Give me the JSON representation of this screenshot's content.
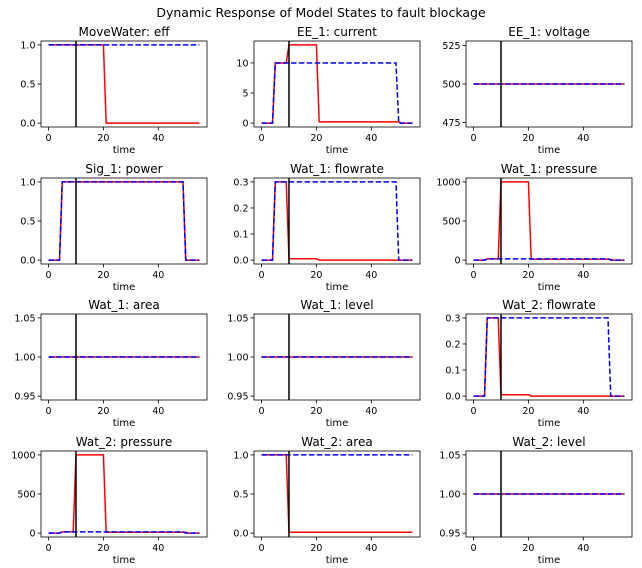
{
  "figure": {
    "title": "Dynamic Response of Model States to fault blockage",
    "fault_time": 10,
    "colors": {
      "faulty": "#ff0000",
      "nominal": "#0000ff",
      "marker": "#000000"
    }
  },
  "chart_data": [
    {
      "type": "line",
      "title": "MoveWater: eff",
      "xlabel": "time",
      "ylabel": "",
      "xlim": [
        -2.75,
        57.75
      ],
      "ylim": [
        -0.05,
        1.05
      ],
      "xticks": [
        0,
        20,
        40
      ],
      "yticks": [
        0.0,
        0.5,
        1.0
      ],
      "ytick_labels": [
        "0.0",
        "0.5",
        "1.0"
      ],
      "vline": 10,
      "series": [
        {
          "style": "solid-red",
          "points": [
            [
              0,
              1
            ],
            [
              20,
              1
            ],
            [
              21,
              0
            ],
            [
              55,
              0
            ]
          ]
        },
        {
          "style": "dashed-blue",
          "points": [
            [
              0,
              1
            ],
            [
              55,
              1
            ]
          ]
        }
      ]
    },
    {
      "type": "line",
      "title": "EE_1: current",
      "xlabel": "time",
      "ylabel": "",
      "xlim": [
        -2.75,
        57.75
      ],
      "ylim": [
        -0.65,
        13.65
      ],
      "xticks": [
        0,
        20,
        40
      ],
      "yticks": [
        0,
        5,
        10
      ],
      "ytick_labels": [
        "0",
        "5",
        "10"
      ],
      "vline": 10,
      "series": [
        {
          "style": "solid-red",
          "points": [
            [
              0,
              0
            ],
            [
              4,
              0
            ],
            [
              5,
              10
            ],
            [
              9,
              10
            ],
            [
              10,
              13
            ],
            [
              20,
              13
            ],
            [
              21,
              0.2
            ],
            [
              50,
              0.2
            ],
            [
              51,
              0
            ],
            [
              55,
              0
            ]
          ]
        },
        {
          "style": "dashed-blue",
          "points": [
            [
              0,
              0
            ],
            [
              4,
              0
            ],
            [
              5,
              10
            ],
            [
              49,
              10
            ],
            [
              50,
              0
            ],
            [
              55,
              0
            ]
          ]
        }
      ]
    },
    {
      "type": "line",
      "title": "EE_1: voltage",
      "xlabel": "time",
      "ylabel": "",
      "xlim": [
        -2.75,
        57.75
      ],
      "ylim": [
        472,
        528
      ],
      "xticks": [
        0,
        20,
        40
      ],
      "yticks": [
        475,
        500,
        525
      ],
      "ytick_labels": [
        "475",
        "500",
        "525"
      ],
      "vline": 10,
      "series": [
        {
          "style": "solid-red",
          "points": [
            [
              0,
              500
            ],
            [
              55,
              500
            ]
          ]
        },
        {
          "style": "dashed-blue",
          "points": [
            [
              0,
              500
            ],
            [
              55,
              500
            ]
          ]
        }
      ]
    },
    {
      "type": "line",
      "title": "Sig_1: power",
      "xlabel": "time",
      "ylabel": "",
      "xlim": [
        -2.75,
        57.75
      ],
      "ylim": [
        -0.05,
        1.05
      ],
      "xticks": [
        0,
        20,
        40
      ],
      "yticks": [
        0.0,
        0.5,
        1.0
      ],
      "ytick_labels": [
        "0.0",
        "0.5",
        "1.0"
      ],
      "vline": 10,
      "series": [
        {
          "style": "solid-red",
          "points": [
            [
              0,
              0
            ],
            [
              4,
              0
            ],
            [
              5,
              1
            ],
            [
              49,
              1
            ],
            [
              50,
              0
            ],
            [
              55,
              0
            ]
          ]
        },
        {
          "style": "dashed-blue",
          "points": [
            [
              0,
              0
            ],
            [
              4,
              0
            ],
            [
              5,
              1
            ],
            [
              49,
              1
            ],
            [
              50,
              0
            ],
            [
              55,
              0
            ]
          ]
        }
      ]
    },
    {
      "type": "line",
      "title": "Wat_1: flowrate",
      "xlabel": "time",
      "ylabel": "",
      "xlim": [
        -2.75,
        57.75
      ],
      "ylim": [
        -0.015,
        0.315
      ],
      "xticks": [
        0,
        20,
        40
      ],
      "yticks": [
        0.0,
        0.1,
        0.2,
        0.3
      ],
      "ytick_labels": [
        "0.0",
        "0.1",
        "0.2",
        "0.3"
      ],
      "vline": 10,
      "series": [
        {
          "style": "solid-red",
          "points": [
            [
              0,
              0
            ],
            [
              4,
              0
            ],
            [
              5,
              0.3
            ],
            [
              9,
              0.3
            ],
            [
              10,
              0.005
            ],
            [
              20,
              0.005
            ],
            [
              21,
              0
            ],
            [
              55,
              0
            ]
          ]
        },
        {
          "style": "dashed-blue",
          "points": [
            [
              0,
              0
            ],
            [
              4,
              0
            ],
            [
              5,
              0.3
            ],
            [
              49,
              0.3
            ],
            [
              50,
              0
            ],
            [
              55,
              0
            ]
          ]
        }
      ]
    },
    {
      "type": "line",
      "title": "Wat_1: pressure",
      "xlabel": "time",
      "ylabel": "",
      "xlim": [
        -2.75,
        57.75
      ],
      "ylim": [
        -50,
        1050
      ],
      "xticks": [
        0,
        20,
        40
      ],
      "yticks": [
        0,
        500,
        1000
      ],
      "ytick_labels": [
        "0",
        "500",
        "1000"
      ],
      "vline": 10,
      "series": [
        {
          "style": "solid-red",
          "points": [
            [
              0,
              0
            ],
            [
              4,
              0
            ],
            [
              5,
              15
            ],
            [
              9,
              15
            ],
            [
              10,
              1000
            ],
            [
              20,
              1000
            ],
            [
              21,
              10
            ],
            [
              50,
              10
            ],
            [
              51,
              0
            ],
            [
              55,
              0
            ]
          ]
        },
        {
          "style": "dashed-blue",
          "points": [
            [
              0,
              0
            ],
            [
              4,
              0
            ],
            [
              5,
              15
            ],
            [
              49,
              15
            ],
            [
              50,
              0
            ],
            [
              55,
              0
            ]
          ]
        }
      ]
    },
    {
      "type": "line",
      "title": "Wat_1: area",
      "xlabel": "time",
      "ylabel": "",
      "xlim": [
        -2.75,
        57.75
      ],
      "ylim": [
        0.945,
        1.055
      ],
      "xticks": [
        0,
        20,
        40
      ],
      "yticks": [
        0.95,
        1.0,
        1.05
      ],
      "ytick_labels": [
        "0.95",
        "1.00",
        "1.05"
      ],
      "vline": 10,
      "series": [
        {
          "style": "solid-red",
          "points": [
            [
              0,
              1
            ],
            [
              55,
              1
            ]
          ]
        },
        {
          "style": "dashed-blue",
          "points": [
            [
              0,
              1
            ],
            [
              55,
              1
            ]
          ]
        }
      ]
    },
    {
      "type": "line",
      "title": "Wat_1: level",
      "xlabel": "time",
      "ylabel": "",
      "xlim": [
        -2.75,
        57.75
      ],
      "ylim": [
        0.945,
        1.055
      ],
      "xticks": [
        0,
        20,
        40
      ],
      "yticks": [
        0.95,
        1.0,
        1.05
      ],
      "ytick_labels": [
        "0.95",
        "1.00",
        "1.05"
      ],
      "vline": 10,
      "series": [
        {
          "style": "solid-red",
          "points": [
            [
              0,
              1
            ],
            [
              55,
              1
            ]
          ]
        },
        {
          "style": "dashed-blue",
          "points": [
            [
              0,
              1
            ],
            [
              55,
              1
            ]
          ]
        }
      ]
    },
    {
      "type": "line",
      "title": "Wat_2: flowrate",
      "xlabel": "time",
      "ylabel": "",
      "xlim": [
        -2.75,
        57.75
      ],
      "ylim": [
        -0.015,
        0.315
      ],
      "xticks": [
        0,
        20,
        40
      ],
      "yticks": [
        0.0,
        0.1,
        0.2,
        0.3
      ],
      "ytick_labels": [
        "0.0",
        "0.1",
        "0.2",
        "0.3"
      ],
      "vline": 10,
      "series": [
        {
          "style": "solid-red",
          "points": [
            [
              0,
              0
            ],
            [
              4,
              0
            ],
            [
              5,
              0.3
            ],
            [
              9,
              0.3
            ],
            [
              10,
              0.005
            ],
            [
              20,
              0.005
            ],
            [
              21,
              0
            ],
            [
              55,
              0
            ]
          ]
        },
        {
          "style": "dashed-blue",
          "points": [
            [
              0,
              0
            ],
            [
              4,
              0
            ],
            [
              5,
              0.3
            ],
            [
              49,
              0.3
            ],
            [
              50,
              0
            ],
            [
              55,
              0
            ]
          ]
        }
      ]
    },
    {
      "type": "line",
      "title": "Wat_2: pressure",
      "xlabel": "time",
      "ylabel": "",
      "xlim": [
        -2.75,
        57.75
      ],
      "ylim": [
        -50,
        1050
      ],
      "xticks": [
        0,
        20,
        40
      ],
      "yticks": [
        0,
        500,
        1000
      ],
      "ytick_labels": [
        "0",
        "500",
        "1000"
      ],
      "vline": 10,
      "series": [
        {
          "style": "solid-red",
          "points": [
            [
              0,
              0
            ],
            [
              4,
              0
            ],
            [
              5,
              15
            ],
            [
              9,
              15
            ],
            [
              10,
              1000
            ],
            [
              20,
              1000
            ],
            [
              21,
              10
            ],
            [
              50,
              10
            ],
            [
              51,
              0
            ],
            [
              55,
              0
            ]
          ]
        },
        {
          "style": "dashed-blue",
          "points": [
            [
              0,
              0
            ],
            [
              4,
              0
            ],
            [
              5,
              15
            ],
            [
              49,
              15
            ],
            [
              50,
              0
            ],
            [
              55,
              0
            ]
          ]
        }
      ]
    },
    {
      "type": "line",
      "title": "Wat_2: area",
      "xlabel": "time",
      "ylabel": "",
      "xlim": [
        -2.75,
        57.75
      ],
      "ylim": [
        -0.05,
        1.05
      ],
      "xticks": [
        0,
        20,
        40
      ],
      "yticks": [
        0.0,
        0.5,
        1.0
      ],
      "ytick_labels": [
        "0.0",
        "0.5",
        "1.0"
      ],
      "vline": 10,
      "series": [
        {
          "style": "solid-red",
          "points": [
            [
              0,
              1
            ],
            [
              9,
              1
            ],
            [
              10,
              0.01
            ],
            [
              55,
              0.01
            ]
          ]
        },
        {
          "style": "dashed-blue",
          "points": [
            [
              0,
              1
            ],
            [
              55,
              1
            ]
          ]
        }
      ]
    },
    {
      "type": "line",
      "title": "Wat_2: level",
      "xlabel": "time",
      "ylabel": "",
      "xlim": [
        -2.75,
        57.75
      ],
      "ylim": [
        0.945,
        1.055
      ],
      "xticks": [
        0,
        20,
        40
      ],
      "yticks": [
        0.95,
        1.0,
        1.05
      ],
      "ytick_labels": [
        "0.95",
        "1.00",
        "1.05"
      ],
      "vline": 10,
      "series": [
        {
          "style": "solid-red",
          "points": [
            [
              0,
              1
            ],
            [
              55,
              1
            ]
          ]
        },
        {
          "style": "dashed-blue",
          "points": [
            [
              0,
              1
            ],
            [
              55,
              1
            ]
          ]
        }
      ]
    }
  ]
}
